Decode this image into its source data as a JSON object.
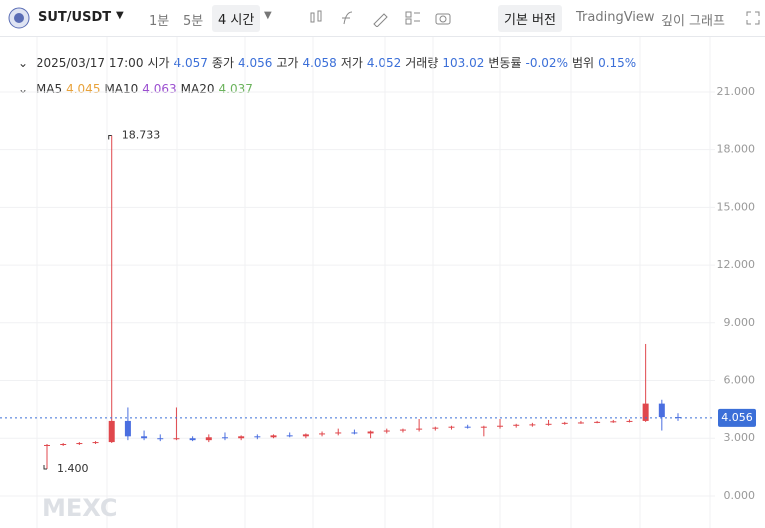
{
  "toolbar": {
    "pair": "SUT/USDT",
    "intervals": [
      "1분",
      "5분",
      "4 시간"
    ],
    "views": [
      "기본 버전",
      "TradingView",
      "깊이 그래프"
    ]
  },
  "info": {
    "datetime": "2025/03/17 17:00",
    "fields": [
      {
        "label": "시가",
        "value": "4.057"
      },
      {
        "label": "종가",
        "value": "4.056"
      },
      {
        "label": "고가",
        "value": "4.058"
      },
      {
        "label": "저가",
        "value": "4.052"
      },
      {
        "label": "거래량",
        "value": "103.02"
      },
      {
        "label": "변동률",
        "value": "-0.02%"
      },
      {
        "label": "범위",
        "value": "0.15%"
      }
    ],
    "ma": [
      {
        "label": "MA5",
        "value": "4.045",
        "color": "#e8a23a"
      },
      {
        "label": "MA10",
        "value": "4.063",
        "color": "#9b4fd0"
      },
      {
        "label": "MA20",
        "value": "4.037",
        "color": "#6bb35c"
      }
    ]
  },
  "watermark": "MEXC",
  "chart_data": {
    "type": "candlestick",
    "up_color": "#e0474c",
    "down_color": "#4a6ee0",
    "open": [
      2.6,
      2.65,
      2.7,
      2.75,
      2.8,
      3.9,
      3.1,
      3.0,
      2.95,
      3.0,
      2.9,
      3.05,
      3.0,
      3.1,
      3.05,
      3.15,
      3.1,
      3.2,
      3.25,
      3.3,
      3.25,
      3.35,
      3.4,
      3.45,
      3.5,
      3.55,
      3.6,
      3.55,
      3.6,
      3.65,
      3.7,
      3.72,
      3.75,
      3.8,
      3.82,
      3.85,
      3.88,
      3.9,
      4.8,
      4.1
    ],
    "high": [
      2.7,
      2.75,
      2.8,
      2.85,
      18.733,
      4.6,
      3.4,
      3.2,
      4.6,
      3.1,
      3.2,
      3.3,
      3.15,
      3.2,
      3.2,
      3.3,
      3.25,
      3.35,
      3.5,
      3.45,
      3.4,
      3.5,
      3.5,
      4.0,
      3.6,
      3.65,
      3.7,
      3.65,
      4.0,
      3.75,
      3.8,
      3.95,
      3.85,
      3.9,
      3.9,
      3.95,
      3.98,
      7.9,
      5.0,
      4.3
    ],
    "low": [
      1.4,
      2.6,
      2.65,
      2.7,
      2.75,
      2.9,
      2.9,
      2.85,
      2.9,
      2.85,
      2.8,
      2.9,
      2.9,
      2.95,
      3.0,
      3.05,
      3.0,
      3.1,
      3.15,
      3.2,
      3.0,
      3.25,
      3.3,
      3.35,
      3.4,
      3.45,
      3.5,
      3.1,
      3.5,
      3.55,
      3.6,
      3.65,
      3.7,
      3.75,
      3.78,
      3.8,
      3.82,
      3.85,
      3.4,
      3.9
    ],
    "close": [
      2.65,
      2.7,
      2.75,
      2.8,
      3.9,
      3.1,
      3.0,
      2.95,
      3.0,
      2.9,
      3.05,
      3.0,
      3.1,
      3.05,
      3.15,
      3.1,
      3.2,
      3.25,
      3.3,
      3.25,
      3.35,
      3.4,
      3.45,
      3.5,
      3.55,
      3.6,
      3.55,
      3.6,
      3.65,
      3.7,
      3.72,
      3.75,
      3.8,
      3.82,
      3.85,
      3.88,
      3.9,
      4.8,
      4.1,
      4.056
    ],
    "high_label": "18.733",
    "low_label": "1.400",
    "last_price": {
      "value": 4.056,
      "label": "4.056"
    },
    "ylim": [
      -1.25,
      23.7
    ],
    "yticks": [
      {
        "value": 0,
        "label": "0.000"
      },
      {
        "value": 3,
        "label": "3.000"
      },
      {
        "value": 6,
        "label": "6.000"
      },
      {
        "value": 9,
        "label": "9.000"
      },
      {
        "value": 12,
        "label": "12.000"
      },
      {
        "value": 15,
        "label": "15.000"
      },
      {
        "value": 18,
        "label": "18.000"
      },
      {
        "value": 21,
        "label": "21.000"
      }
    ],
    "grid": true
  }
}
